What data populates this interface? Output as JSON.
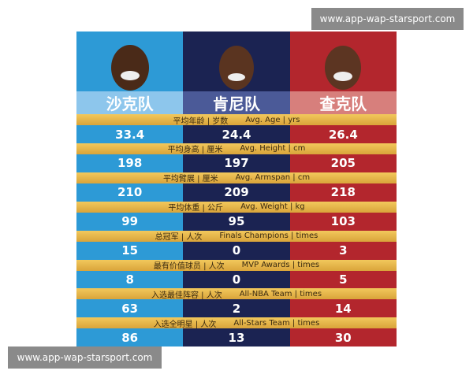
{
  "watermarks": {
    "top": "www.app-wap-starsport.com",
    "bottom": "www.app-wap-starsport.com"
  },
  "teams": [
    "沙克队",
    "肯尼队",
    "查克队"
  ],
  "rows": [
    {
      "label": "平均年龄 | 岁数",
      "label_en": "Avg. Age | yrs",
      "values": [
        33.4,
        24.4,
        26.4
      ]
    },
    {
      "label": "平均身高 | 厘米",
      "label_en": "Avg. Height | cm",
      "values": [
        198,
        197,
        205
      ]
    },
    {
      "label": "平均臂展 | 厘米",
      "label_en": "Avg. Armspan | cm",
      "values": [
        210,
        209,
        218
      ]
    },
    {
      "label": "平均体重 | 公斤",
      "label_en": "Avg. Weight | kg",
      "values": [
        99,
        95,
        103
      ]
    },
    {
      "label": "总冠军 | 人次",
      "label_en": "Finals Champions | times",
      "values": [
        15,
        0,
        3
      ]
    },
    {
      "label": "最有价值球员 | 人次",
      "label_en": "MVP Awards | times",
      "values": [
        8,
        0,
        5
      ]
    },
    {
      "label": "入选最佳阵容 | 人次",
      "label_en": "All-NBA Team | times",
      "values": [
        63,
        2,
        14
      ]
    },
    {
      "label": "入选全明星 | 人次",
      "label_en": "All-Stars Team | times",
      "values": [
        86,
        13,
        30
      ]
    }
  ]
}
